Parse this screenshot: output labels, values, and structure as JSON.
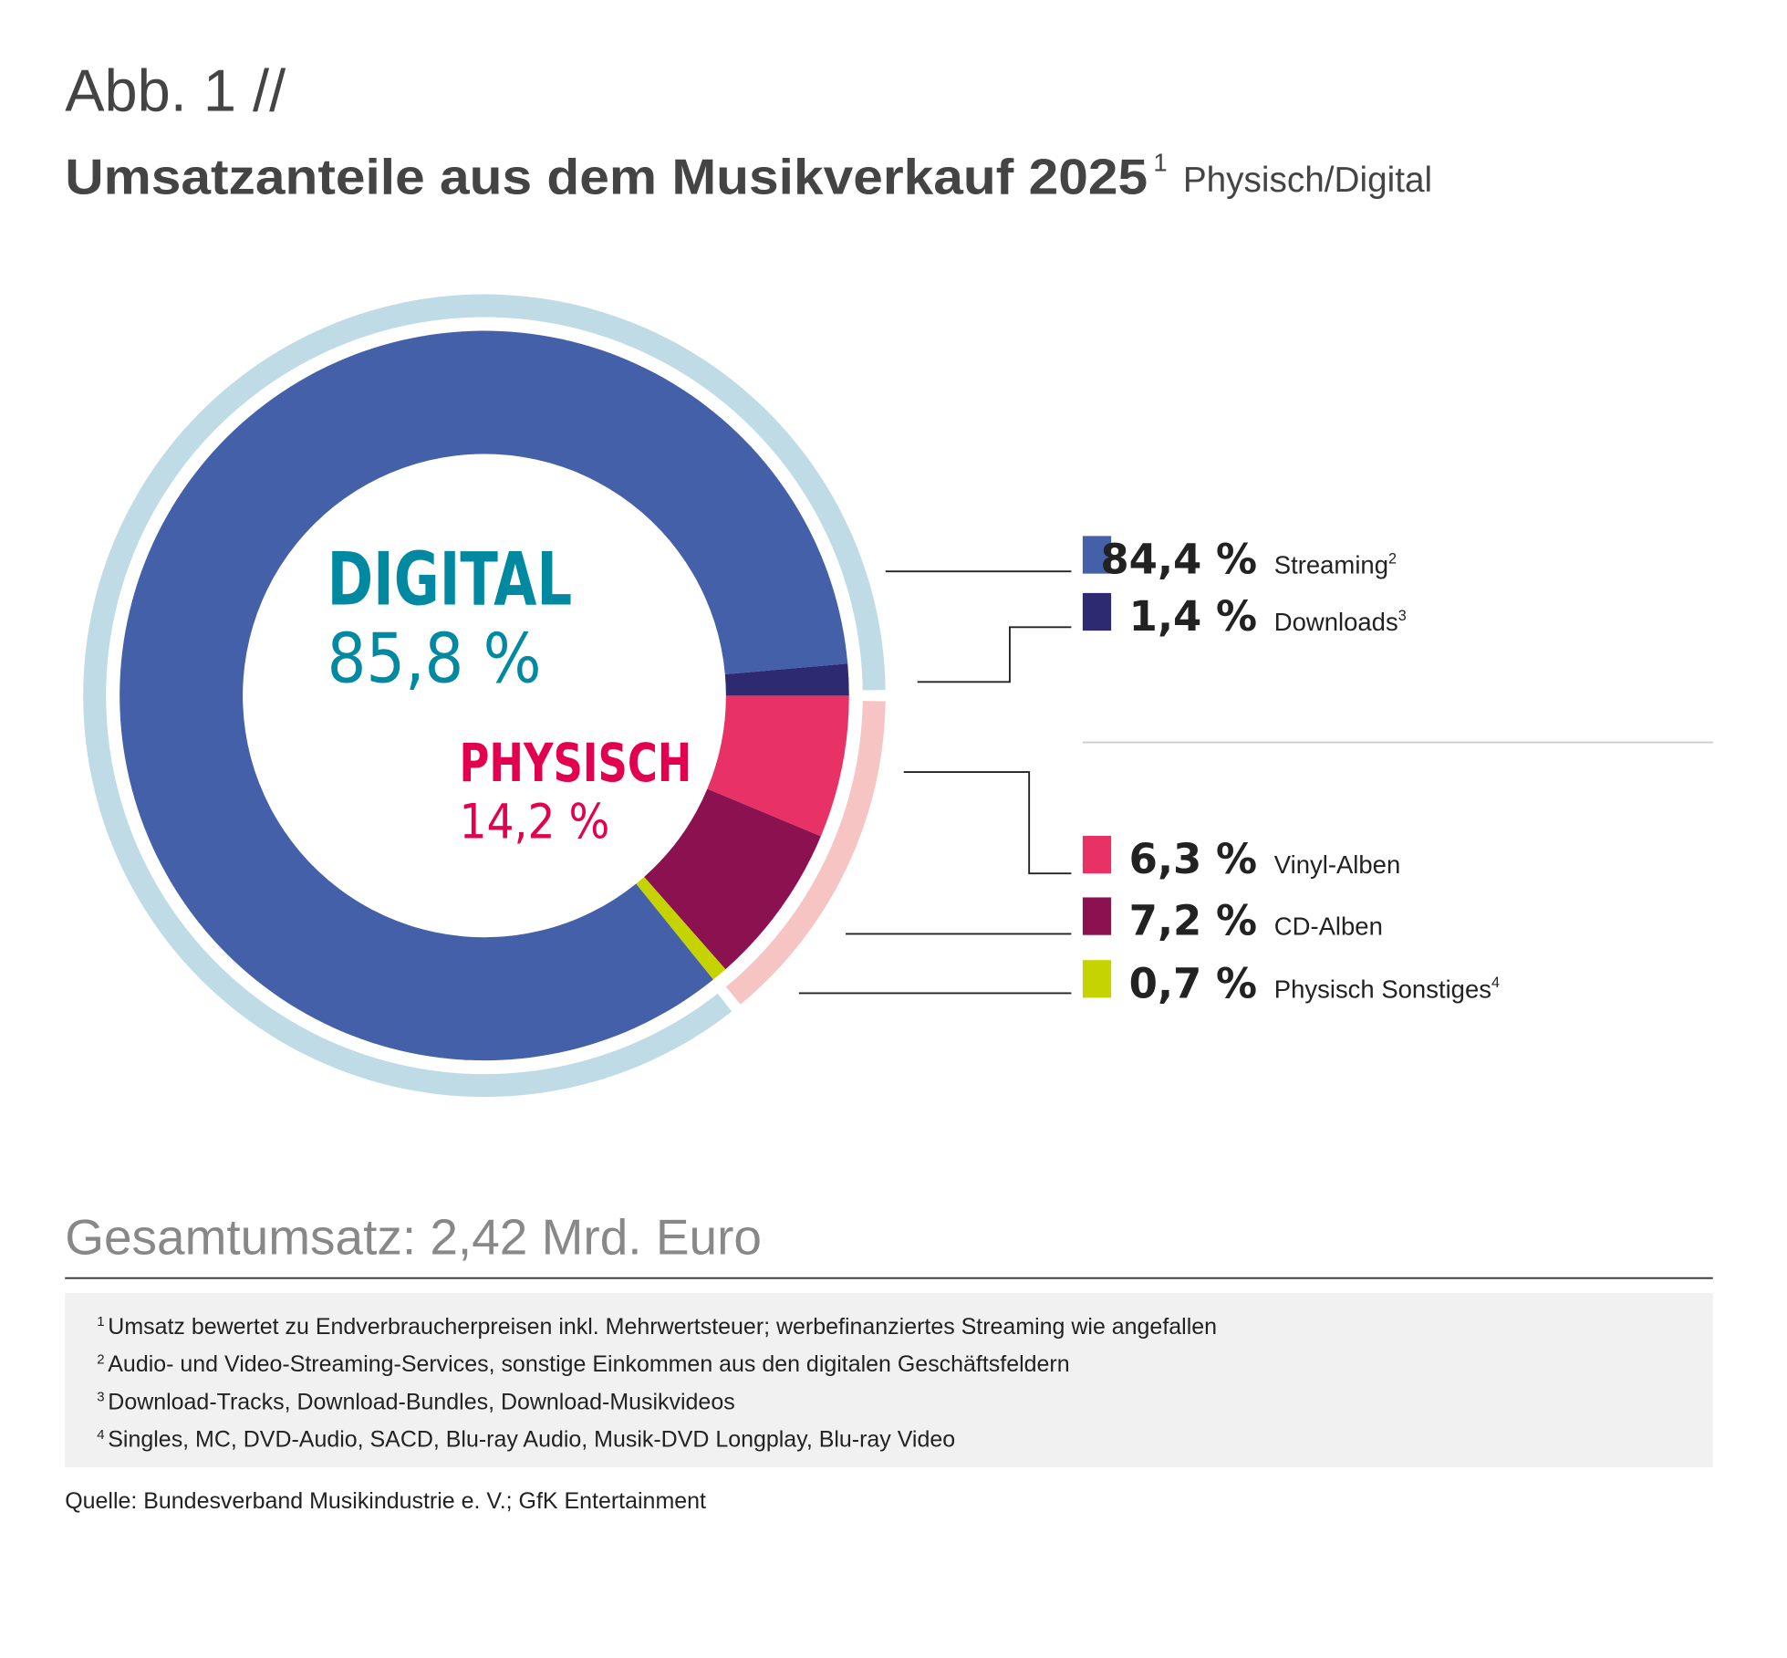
{
  "header": {
    "figure_label": "Abb. 1 //",
    "title": "Umsatzanteile aus dem Musikverkauf 2025",
    "title_sup": "1",
    "subtitle": "Physisch/Digital"
  },
  "center": {
    "digital_label": "DIGITAL",
    "digital_value": "85,8 %",
    "physisch_label": "PHYSISCH",
    "physisch_value": "14,2 %"
  },
  "colors": {
    "streaming": "#4360a8",
    "downloads": "#2e2a72",
    "vinyl": "#e83265",
    "cd": "#8c1150",
    "sonstiges": "#c5d400",
    "ring_digital": "#bfdbe5",
    "ring_physisch": "#f6c5c3",
    "digital_text": "#0089a0",
    "physisch_text": "#e2004f"
  },
  "chart_data": {
    "type": "pie",
    "title": "Umsatzanteile aus dem Musikverkauf 2025 Physisch/Digital",
    "groups": [
      {
        "name": "DIGITAL",
        "value": 85.8
      },
      {
        "name": "PHYSISCH",
        "value": 14.2
      }
    ],
    "slices": [
      {
        "key": "vinyl",
        "label": "Vinyl-Alben",
        "sup": "",
        "value": 6.3,
        "value_text": "6,3 %",
        "group": "PHYSISCH"
      },
      {
        "key": "cd",
        "label": "CD-Alben",
        "sup": "",
        "value": 7.2,
        "value_text": "7,2 %",
        "group": "PHYSISCH"
      },
      {
        "key": "sonstiges",
        "label": "Physisch Sonstiges",
        "sup": "4",
        "value": 0.7,
        "value_text": "0,7 %",
        "group": "PHYSISCH"
      },
      {
        "key": "streaming",
        "label": "Streaming",
        "sup": "2",
        "value": 84.4,
        "value_text": "84,4 %",
        "group": "DIGITAL"
      },
      {
        "key": "downloads",
        "label": "Downloads",
        "sup": "3",
        "value": 1.4,
        "value_text": "1,4 %",
        "group": "DIGITAL"
      }
    ]
  },
  "total": "Gesamtumsatz: 2,42 Mrd. Euro",
  "footnotes": [
    {
      "num": "1",
      "text": "Umsatz bewertet zu Endverbraucherpreisen inkl. Mehrwertsteuer; werbefinanziertes Streaming wie angefallen"
    },
    {
      "num": "2",
      "text": "Audio- und Video-Streaming-Services, sonstige Einkommen aus den digitalen Geschäftsfeldern"
    },
    {
      "num": "3",
      "text": "Download-Tracks, Download-Bundles, Download-Musikvideos"
    },
    {
      "num": "4",
      "text": "Singles, MC, DVD-Audio, SACD, Blu-ray Audio, Musik-DVD Longplay, Blu-ray Video"
    }
  ],
  "source": "Quelle: Bundesverband Musikindustrie e. V.; GfK Entertainment"
}
